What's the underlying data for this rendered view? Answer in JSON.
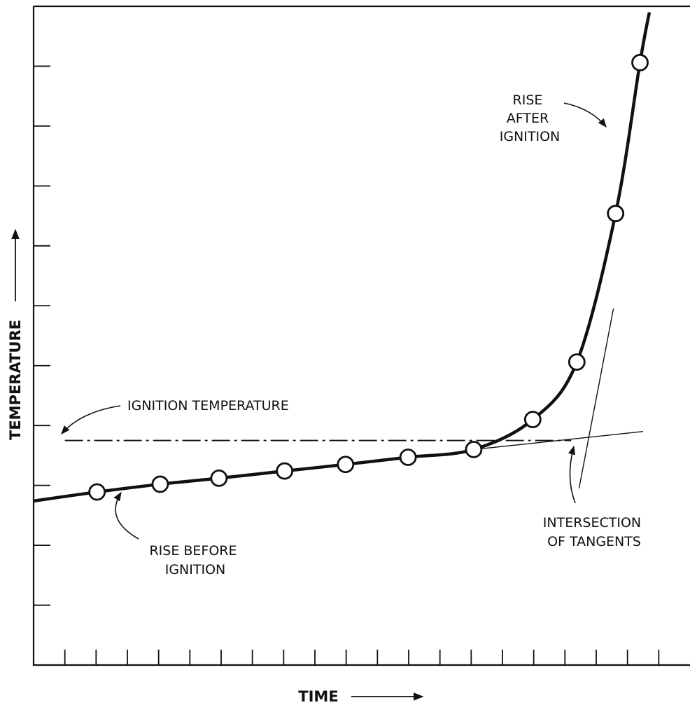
{
  "chart_data": {
    "type": "line",
    "title": "",
    "xlabel": "TIME",
    "ylabel": "TEMPERATURE",
    "xlim": [
      0,
      21
    ],
    "ylim": [
      0,
      11
    ],
    "x_ticks": [
      1,
      2,
      3,
      4,
      5,
      6,
      7,
      8,
      9,
      10,
      11,
      12,
      13,
      14,
      15,
      16,
      17,
      18,
      19,
      20
    ],
    "y_ticks": [
      1,
      2,
      3,
      4,
      5,
      6,
      7,
      8,
      9,
      10
    ],
    "tick_labels_shown": false,
    "grid": false,
    "legend": "none",
    "series": [
      {
        "values_x": [
          2.03,
          4.05,
          5.93,
          8.03,
          9.98,
          11.98,
          14.08,
          15.97,
          17.38,
          18.62,
          19.4
        ],
        "values_y": [
          2.89,
          3.02,
          3.12,
          3.24,
          3.35,
          3.47,
          3.6,
          4.1,
          5.06,
          7.54,
          10.06
        ],
        "marker": "open-circle"
      }
    ],
    "curve_extent": {
      "x": [
        0,
        19.7
      ],
      "y": [
        2.74,
        10.9
      ]
    },
    "reference_lines": [
      {
        "kind": "dash-dot",
        "y": 3.75,
        "x": [
          1.0,
          17.2
        ]
      },
      {
        "kind": "tangent",
        "from": [
          14.1,
          3.6
        ],
        "to": [
          19.5,
          3.9
        ]
      },
      {
        "kind": "tangent",
        "from": [
          17.45,
          2.95
        ],
        "to": [
          18.55,
          5.95
        ]
      }
    ],
    "annotations": [
      {
        "lines": [
          "RISE",
          "AFTER",
          "IGNITION"
        ]
      },
      {
        "lines": [
          "IGNITION TEMPERATURE"
        ]
      },
      {
        "lines": [
          "INTERSECTION",
          "OF TANGENTS"
        ]
      },
      {
        "lines": [
          "RISE BEFORE",
          "IGNITION"
        ]
      }
    ],
    "colors": {
      "ink": "#111111",
      "marker_fill": "#ffffff"
    }
  }
}
